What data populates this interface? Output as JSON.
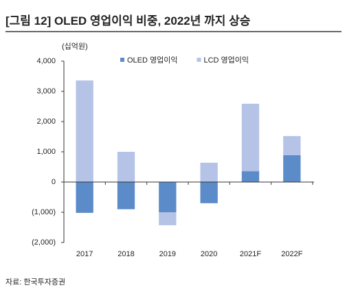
{
  "chart_data": {
    "type": "bar",
    "stacked": true,
    "title": "[그림 12] OLED 영업이익 비중, 2022년 까지 상승",
    "unit_label": "(십억원)",
    "source": "자료: 한국투자증권",
    "categories": [
      "2017",
      "2018",
      "2019",
      "2020",
      "2021F",
      "2022F"
    ],
    "series": [
      {
        "name": "OLED 영업이익",
        "color": "#5b8bc9",
        "values": [
          -1020,
          -900,
          -1000,
          -700,
          360,
          890
        ]
      },
      {
        "name": "LCD 영업이익",
        "color": "#b4c3e6",
        "values": [
          3360,
          1000,
          -430,
          640,
          2230,
          630
        ]
      }
    ],
    "ylim": [
      -2000,
      4000
    ],
    "yticks": [
      {
        "value": -2000,
        "label": "(2,000)"
      },
      {
        "value": -1000,
        "label": "(1,000)"
      },
      0,
      {
        "value": 1000,
        "label": "1,000"
      },
      {
        "value": 2000,
        "label": "2,000"
      },
      {
        "value": 3000,
        "label": "3,000"
      },
      {
        "value": 4000,
        "label": "4,000"
      }
    ],
    "legend": "top",
    "grid": false
  }
}
